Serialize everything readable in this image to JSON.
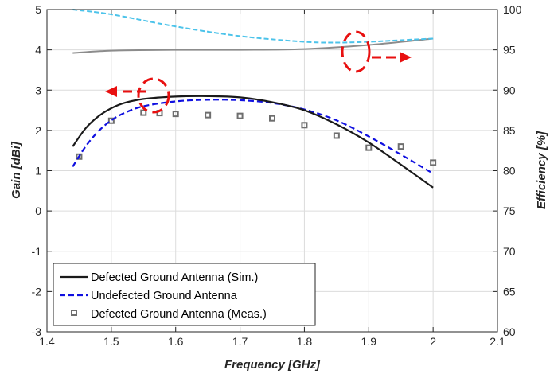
{
  "chart_data": {
    "type": "line",
    "xlabel": "Frequency [GHz]",
    "ylabel": "Gain [dBi]",
    "y2label": "Efficiency [%]",
    "xlim": [
      1.4,
      2.1
    ],
    "ylim": [
      -3,
      5
    ],
    "y2lim": [
      60,
      100
    ],
    "xticks": [
      "1.4",
      "1.5",
      "1.6",
      "1.7",
      "1.8",
      "1.9",
      "2",
      "2.1"
    ],
    "yticks": [
      "-3",
      "-2",
      "-1",
      "0",
      "1",
      "2",
      "3",
      "4",
      "5"
    ],
    "y2ticks": [
      "60",
      "65",
      "70",
      "75",
      "80",
      "85",
      "90",
      "95",
      "100"
    ],
    "grid": true,
    "legend_position": "bottom-left",
    "series": [
      {
        "name": "Defected Ground Antenna (Sim.)",
        "axis": "left",
        "style": "solid",
        "color": "#1a1a1a",
        "x": [
          1.44,
          1.46,
          1.48,
          1.5,
          1.52,
          1.55,
          1.6,
          1.65,
          1.7,
          1.75,
          1.8,
          1.85,
          1.9,
          1.95,
          2.0
        ],
        "y": [
          1.6,
          2.05,
          2.35,
          2.55,
          2.68,
          2.78,
          2.84,
          2.85,
          2.82,
          2.7,
          2.5,
          2.15,
          1.7,
          1.15,
          0.58
        ]
      },
      {
        "name": "Undefected Ground Antenna",
        "axis": "left",
        "style": "dashed",
        "color": "#1010e0",
        "x": [
          1.44,
          1.46,
          1.48,
          1.5,
          1.52,
          1.55,
          1.6,
          1.65,
          1.7,
          1.75,
          1.8,
          1.85,
          1.9,
          1.95,
          2.0
        ],
        "y": [
          1.1,
          1.6,
          1.98,
          2.25,
          2.43,
          2.6,
          2.72,
          2.76,
          2.75,
          2.68,
          2.52,
          2.25,
          1.85,
          1.4,
          0.93
        ]
      },
      {
        "name": "Defected Ground Antenna (Meas.)",
        "axis": "left",
        "style": "marker",
        "color": "#6e6e6e",
        "x": [
          1.45,
          1.5,
          1.55,
          1.575,
          1.6,
          1.65,
          1.7,
          1.75,
          1.8,
          1.85,
          1.9,
          1.95,
          2.0
        ],
        "y": [
          1.35,
          2.24,
          2.44,
          2.43,
          2.41,
          2.38,
          2.36,
          2.3,
          2.13,
          1.87,
          1.57,
          1.6,
          1.2
        ]
      },
      {
        "axis": "right",
        "style": "solid",
        "color": "#8c8c8c",
        "x": [
          1.44,
          1.5,
          1.6,
          1.7,
          1.8,
          1.9,
          2.0
        ],
        "y": [
          94.6,
          94.9,
          95.0,
          95.0,
          95.1,
          95.6,
          96.4
        ]
      },
      {
        "axis": "right",
        "style": "dashed",
        "color": "#4cc3ea",
        "x": [
          1.44,
          1.5,
          1.6,
          1.7,
          1.8,
          1.85,
          1.9,
          1.95,
          2.0
        ],
        "y": [
          100.0,
          99.4,
          97.9,
          96.7,
          96.0,
          95.9,
          96.0,
          96.2,
          96.4
        ]
      }
    ]
  }
}
